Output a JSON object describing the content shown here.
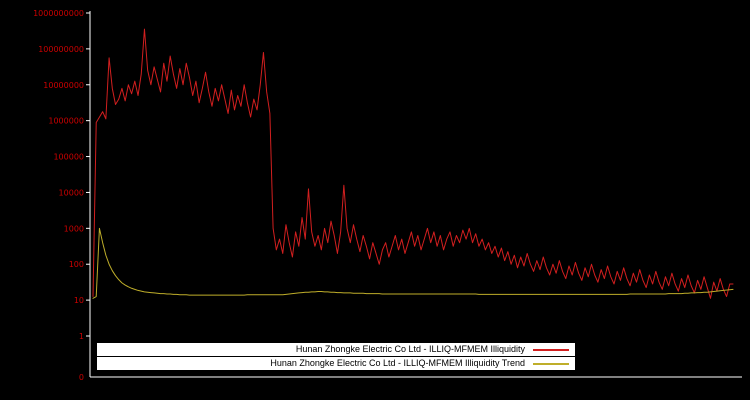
{
  "colors": {
    "background": "#000000",
    "axis": "#ffffff",
    "tick_label": "#cc0000",
    "series_red": "#d21f1f",
    "series_yellow": "#bfae2a",
    "legend_bg": "#ffffff",
    "legend_text": "#000000"
  },
  "legend": {
    "item1": "Hunan Zhongke Electric Co Ltd - ILLIQ-MFMEM Illiquidity",
    "item2": "Hunan Zhongke Electric Co Ltd - ILLIQ-MFMEM Illiquidity Trend"
  },
  "chart_data": {
    "type": "line",
    "title": "",
    "xlabel": "",
    "ylabel": "",
    "yscale": "log",
    "ylim": [
      1,
      1000000000
    ],
    "grid": false,
    "legend_position": "bottom-center",
    "y_ticks": [
      {
        "label": "1000000000",
        "log": 9
      },
      {
        "label": "100000000",
        "log": 8
      },
      {
        "label": "10000000",
        "log": 7
      },
      {
        "label": "1000000",
        "log": 6
      },
      {
        "label": "100000",
        "log": 5
      },
      {
        "label": "10000",
        "log": 4
      },
      {
        "label": "1000",
        "log": 3
      },
      {
        "label": "100",
        "log": 2
      },
      {
        "label": "10",
        "log": 1
      },
      {
        "label": "1",
        "log": 0
      },
      {
        "label": "0",
        "log": -1.14
      }
    ],
    "series": [
      {
        "name": "Hunan Zhongke Electric Co Ltd - ILLIQ-MFMEM Illiquidity",
        "color": "#d21f1f",
        "log10_values": [
          1.1,
          5.95,
          6.1,
          6.25,
          6.05,
          7.75,
          6.9,
          6.45,
          6.6,
          6.9,
          6.55,
          7.0,
          6.75,
          7.1,
          6.7,
          7.3,
          8.55,
          7.4,
          7.0,
          7.5,
          7.15,
          6.8,
          7.6,
          7.1,
          7.8,
          7.3,
          6.9,
          7.45,
          7.0,
          7.6,
          7.2,
          6.7,
          7.1,
          6.5,
          6.9,
          7.35,
          6.8,
          6.4,
          6.9,
          6.55,
          7.0,
          6.6,
          6.2,
          6.85,
          6.3,
          6.7,
          6.4,
          7.0,
          6.5,
          6.1,
          6.6,
          6.3,
          7.0,
          7.9,
          6.8,
          6.2,
          3.0,
          2.4,
          2.7,
          2.3,
          3.1,
          2.6,
          2.2,
          2.9,
          2.5,
          3.3,
          2.7,
          4.1,
          2.9,
          2.5,
          2.8,
          2.4,
          3.0,
          2.6,
          3.2,
          2.8,
          2.3,
          2.9,
          4.2,
          3.0,
          2.6,
          3.1,
          2.7,
          2.35,
          2.8,
          2.5,
          2.15,
          2.6,
          2.3,
          2.0,
          2.4,
          2.6,
          2.2,
          2.5,
          2.8,
          2.4,
          2.7,
          2.3,
          2.6,
          2.9,
          2.5,
          2.8,
          2.4,
          2.7,
          3.0,
          2.6,
          2.9,
          2.5,
          2.8,
          2.4,
          2.7,
          2.9,
          2.5,
          2.8,
          2.6,
          2.95,
          2.7,
          3.0,
          2.6,
          2.85,
          2.5,
          2.7,
          2.4,
          2.6,
          2.3,
          2.5,
          2.2,
          2.45,
          2.1,
          2.35,
          2.0,
          2.25,
          1.9,
          2.2,
          1.95,
          2.3,
          2.0,
          1.8,
          2.1,
          1.85,
          2.2,
          1.9,
          1.7,
          2.0,
          1.75,
          2.1,
          1.8,
          1.6,
          1.95,
          1.7,
          2.05,
          1.75,
          1.55,
          1.9,
          1.65,
          2.0,
          1.7,
          1.5,
          1.85,
          1.6,
          1.95,
          1.65,
          1.45,
          1.8,
          1.55,
          1.9,
          1.6,
          1.4,
          1.75,
          1.5,
          1.85,
          1.55,
          1.35,
          1.7,
          1.45,
          1.8,
          1.5,
          1.3,
          1.65,
          1.4,
          1.75,
          1.45,
          1.25,
          1.6,
          1.35,
          1.7,
          1.4,
          1.2,
          1.55,
          1.3,
          1.65,
          1.35,
          1.05,
          1.5,
          1.25,
          1.6,
          1.3,
          1.1,
          1.45,
          1.45
        ]
      },
      {
        "name": "Hunan Zhongke Electric Co Ltd - ILLIQ-MFMEM Illiquidity Trend",
        "color": "#bfae2a",
        "log10_values": [
          1.05,
          1.1,
          3.0,
          2.6,
          2.25,
          2.0,
          1.82,
          1.68,
          1.57,
          1.48,
          1.42,
          1.37,
          1.33,
          1.3,
          1.27,
          1.25,
          1.23,
          1.22,
          1.21,
          1.2,
          1.19,
          1.18,
          1.18,
          1.17,
          1.17,
          1.16,
          1.16,
          1.15,
          1.15,
          1.15,
          1.14,
          1.14,
          1.14,
          1.14,
          1.14,
          1.14,
          1.14,
          1.14,
          1.14,
          1.14,
          1.14,
          1.14,
          1.14,
          1.14,
          1.14,
          1.14,
          1.14,
          1.14,
          1.15,
          1.15,
          1.15,
          1.15,
          1.15,
          1.15,
          1.15,
          1.15,
          1.15,
          1.15,
          1.15,
          1.15,
          1.16,
          1.17,
          1.18,
          1.19,
          1.2,
          1.21,
          1.22,
          1.22,
          1.23,
          1.23,
          1.24,
          1.24,
          1.23,
          1.23,
          1.22,
          1.22,
          1.21,
          1.21,
          1.2,
          1.2,
          1.2,
          1.19,
          1.19,
          1.19,
          1.19,
          1.18,
          1.18,
          1.18,
          1.18,
          1.18,
          1.17,
          1.17,
          1.17,
          1.17,
          1.17,
          1.17,
          1.17,
          1.17,
          1.17,
          1.17,
          1.17,
          1.17,
          1.17,
          1.17,
          1.17,
          1.17,
          1.17,
          1.17,
          1.17,
          1.17,
          1.17,
          1.17,
          1.17,
          1.17,
          1.17,
          1.17,
          1.17,
          1.17,
          1.17,
          1.17,
          1.16,
          1.16,
          1.16,
          1.16,
          1.16,
          1.16,
          1.16,
          1.16,
          1.16,
          1.16,
          1.16,
          1.16,
          1.16,
          1.16,
          1.16,
          1.16,
          1.16,
          1.16,
          1.16,
          1.16,
          1.16,
          1.16,
          1.16,
          1.16,
          1.16,
          1.16,
          1.16,
          1.16,
          1.16,
          1.16,
          1.16,
          1.16,
          1.16,
          1.16,
          1.16,
          1.16,
          1.16,
          1.16,
          1.16,
          1.16,
          1.16,
          1.16,
          1.16,
          1.16,
          1.16,
          1.16,
          1.16,
          1.17,
          1.17,
          1.17,
          1.17,
          1.17,
          1.17,
          1.17,
          1.17,
          1.17,
          1.17,
          1.17,
          1.17,
          1.18,
          1.18,
          1.18,
          1.18,
          1.18,
          1.19,
          1.19,
          1.2,
          1.2,
          1.21,
          1.21,
          1.22,
          1.22,
          1.23,
          1.24,
          1.25,
          1.26,
          1.27,
          1.28,
          1.29,
          1.3
        ]
      }
    ]
  }
}
